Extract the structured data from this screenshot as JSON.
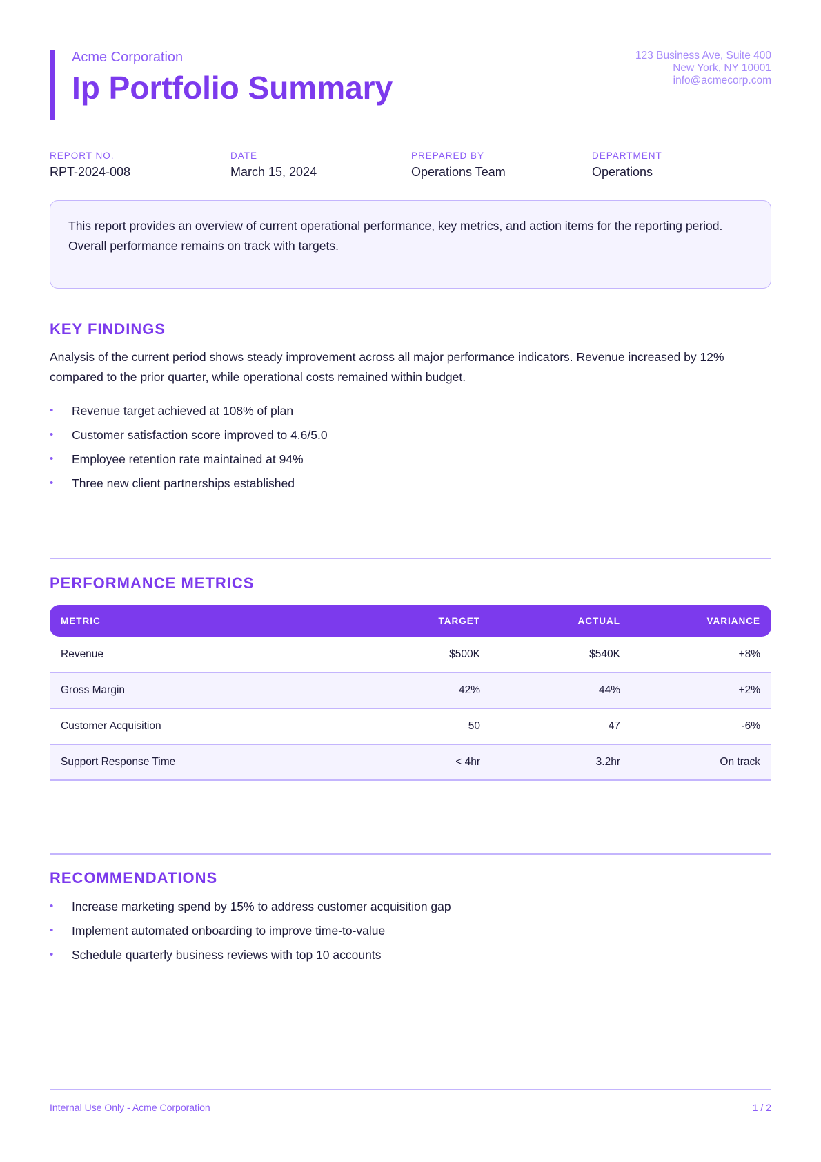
{
  "header": {
    "company": "Acme Corporation",
    "title": "Ip Portfolio Summary",
    "address": [
      "123 Business Ave, Suite 400",
      "New York, NY 10001",
      "info@acmecorp.com"
    ]
  },
  "meta": [
    {
      "label": "REPORT NO.",
      "value": "RPT-2024-008"
    },
    {
      "label": "DATE",
      "value": "March 15, 2024"
    },
    {
      "label": "PREPARED BY",
      "value": "Operations Team"
    },
    {
      "label": "DEPARTMENT",
      "value": "Operations"
    }
  ],
  "summary": "This report provides an overview of current operational performance, key metrics, and action items for the reporting period. Overall performance remains on track with targets.",
  "key_findings": {
    "heading": "KEY FINDINGS",
    "paragraph": "Analysis of the current period shows steady improvement across all major performance indicators. Revenue increased by 12% compared to the prior quarter, while operational costs remained within budget.",
    "bullets": [
      "Revenue target achieved at 108% of plan",
      "Customer satisfaction score improved to 4.6/5.0",
      "Employee retention rate maintained at 94%",
      "Three new client partnerships established"
    ]
  },
  "performance": {
    "heading": "PERFORMANCE METRICS",
    "columns": [
      "METRIC",
      "TARGET",
      "ACTUAL",
      "VARIANCE"
    ],
    "rows": [
      [
        "Revenue",
        "$500K",
        "$540K",
        "+8%"
      ],
      [
        "Gross Margin",
        "42%",
        "44%",
        "+2%"
      ],
      [
        "Customer Acquisition",
        "50",
        "47",
        "-6%"
      ],
      [
        "Support Response Time",
        "< 4hr",
        "3.2hr",
        "On track"
      ]
    ]
  },
  "recommendations": {
    "heading": "RECOMMENDATIONS",
    "bullets": [
      "Increase marketing spend by 15% to address customer acquisition gap",
      "Implement automated onboarding to improve time-to-value",
      "Schedule quarterly business reviews with top 10 accounts"
    ]
  },
  "footer": {
    "left": "Internal Use Only - Acme Corporation",
    "right": "1 / 2"
  },
  "colors": {
    "accent": "#7c3aed",
    "light_accent": "#8b5cf6",
    "border": "#c4b5fd",
    "tint": "#f5f3ff"
  }
}
